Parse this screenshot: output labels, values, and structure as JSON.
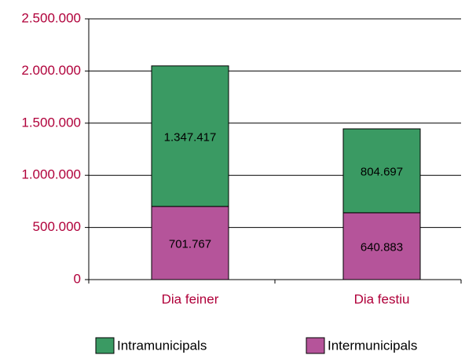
{
  "chart_data": {
    "type": "stacked_bar",
    "categories": [
      "Dia feiner",
      "Dia festiu"
    ],
    "series": [
      {
        "name": "Intramunicipals",
        "color": "#3a9a63",
        "values": [
          1347417,
          804697
        ],
        "value_labels": [
          "1.347.417",
          "804.697"
        ]
      },
      {
        "name": "Intermunicipals",
        "color": "#b5549a",
        "values": [
          701767,
          640883
        ],
        "value_labels": [
          "701.767",
          "640.883"
        ]
      }
    ],
    "ylim": [
      0,
      2500000
    ],
    "yticks": [
      0,
      {
        "value": 500000,
        "label": "500.000"
      },
      {
        "value": 1000000,
        "label": "1.000.000"
      },
      {
        "value": 1500000,
        "label": "1.500.000"
      },
      {
        "value": 2000000,
        "label": "2.000.000"
      },
      {
        "value": 2500000,
        "label": "2.500.000"
      }
    ],
    "grid": true
  }
}
